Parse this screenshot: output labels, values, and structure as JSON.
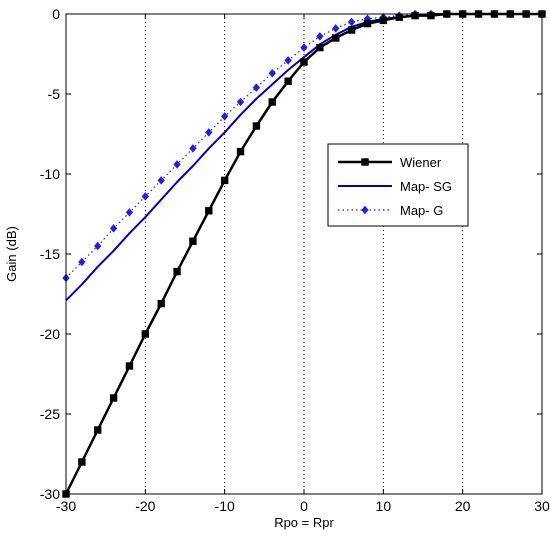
{
  "chart_data": {
    "type": "line",
    "xlabel": "Rpo = Rpr",
    "ylabel": "Gain (dB)",
    "xlim": [
      -30,
      30
    ],
    "ylim": [
      -30,
      0
    ],
    "xticks": [
      -30,
      -20,
      -10,
      0,
      10,
      20,
      30
    ],
    "yticks": [
      0,
      -5,
      -10,
      -15,
      -20,
      -25,
      -30
    ],
    "xtick_labels": [
      "-30",
      "-20",
      "-10",
      "0",
      "10",
      "20",
      "30"
    ],
    "ytick_labels": [
      "0",
      "-5",
      "-10",
      "-15",
      "-20",
      "-25",
      "-30"
    ],
    "grid": "vertical dotted at x ticks",
    "legend_position": "right-middle",
    "series": [
      {
        "name": "Wiener",
        "color": "#000000",
        "style": "solid-square-markers",
        "x": [
          -30,
          -28,
          -26,
          -24,
          -22,
          -20,
          -18,
          -16,
          -14,
          -12,
          -10,
          -8,
          -6,
          -4,
          -2,
          0,
          2,
          4,
          6,
          8,
          10,
          12,
          14,
          16,
          18,
          20,
          22,
          24,
          26,
          28,
          30
        ],
        "y": [
          -30.0,
          -28.0,
          -26.0,
          -24.0,
          -22.0,
          -20.0,
          -18.1,
          -16.1,
          -14.2,
          -12.3,
          -10.4,
          -8.6,
          -7.0,
          -5.5,
          -4.2,
          -3.0,
          -2.1,
          -1.5,
          -1.0,
          -0.6,
          -0.4,
          -0.2,
          -0.1,
          -0.1,
          0.0,
          0.0,
          0.0,
          0.0,
          0.0,
          0.0,
          0.0
        ]
      },
      {
        "name": "Map- SG",
        "color": "#0000b4",
        "style": "solid",
        "x": [
          -30,
          -28,
          -26,
          -24,
          -22,
          -20,
          -18,
          -16,
          -14,
          -12,
          -10,
          -8,
          -6,
          -4,
          -2,
          0,
          2,
          4,
          6,
          8,
          10,
          12,
          14,
          16,
          18,
          20,
          22,
          24,
          26,
          28,
          30
        ],
        "y": [
          -17.9,
          -16.9,
          -15.8,
          -14.8,
          -13.7,
          -12.7,
          -11.6,
          -10.5,
          -9.5,
          -8.4,
          -7.4,
          -6.3,
          -5.3,
          -4.4,
          -3.5,
          -2.7,
          -1.9,
          -1.3,
          -0.8,
          -0.5,
          -0.3,
          -0.2,
          -0.1,
          0.0,
          0.0,
          0.0,
          0.0,
          0.0,
          0.0,
          0.0,
          0.0
        ]
      },
      {
        "name": "Map- G",
        "color": "#2020e0",
        "style": "dotted-diamond-markers",
        "x": [
          -30,
          -28,
          -26,
          -24,
          -22,
          -20,
          -18,
          -16,
          -14,
          -12,
          -10,
          -8,
          -6,
          -4,
          -2,
          0,
          2,
          4,
          6,
          8,
          10,
          12,
          14,
          16,
          18,
          20,
          22,
          24,
          26,
          28,
          30
        ],
        "y": [
          -16.5,
          -15.5,
          -14.5,
          -13.4,
          -12.4,
          -11.4,
          -10.4,
          -9.4,
          -8.4,
          -7.4,
          -6.4,
          -5.5,
          -4.6,
          -3.7,
          -2.9,
          -2.1,
          -1.4,
          -0.9,
          -0.5,
          -0.3,
          -0.2,
          -0.1,
          0.0,
          0.0,
          0.0,
          0.0,
          0.0,
          0.0,
          0.0,
          0.0,
          0.0
        ]
      }
    ]
  }
}
